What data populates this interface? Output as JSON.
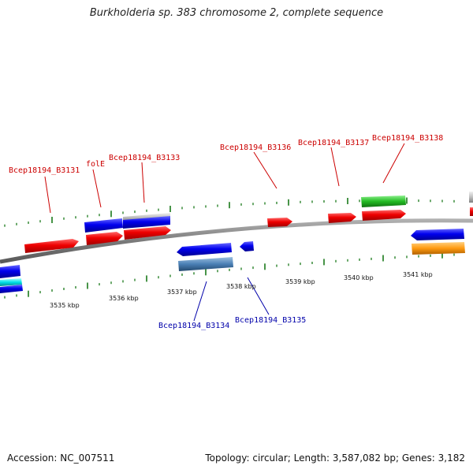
{
  "title": "Burkholderia sp. 383 chromosome 2, complete sequence",
  "footer": {
    "accession": "Accession: NC_007511",
    "topology": "Topology: circular; Length: 3,587,082 bp; Genes: 3,182"
  },
  "colors": {
    "forward_label": "#cc0000",
    "reverse_label": "#0000aa",
    "tick": "#1a7a1a",
    "backbone": "#8c8c8c"
  },
  "kbp_labels": [
    "3535 kbp",
    "3536 kbp",
    "3537 kbp",
    "3538 kbp",
    "3539 kbp",
    "3540 kbp",
    "3541 kbp"
  ],
  "gene_labels": {
    "B3131": "Bcep18194_B3131",
    "folE": "folE",
    "B3133": "Bcep18194_B3133",
    "B3136": "Bcep18194_B3136",
    "B3137": "Bcep18194_B3137",
    "B3138": "Bcep18194_B3138",
    "B3134": "Bcep18194_B3134",
    "B3135": "Bcep18194_B3135"
  }
}
